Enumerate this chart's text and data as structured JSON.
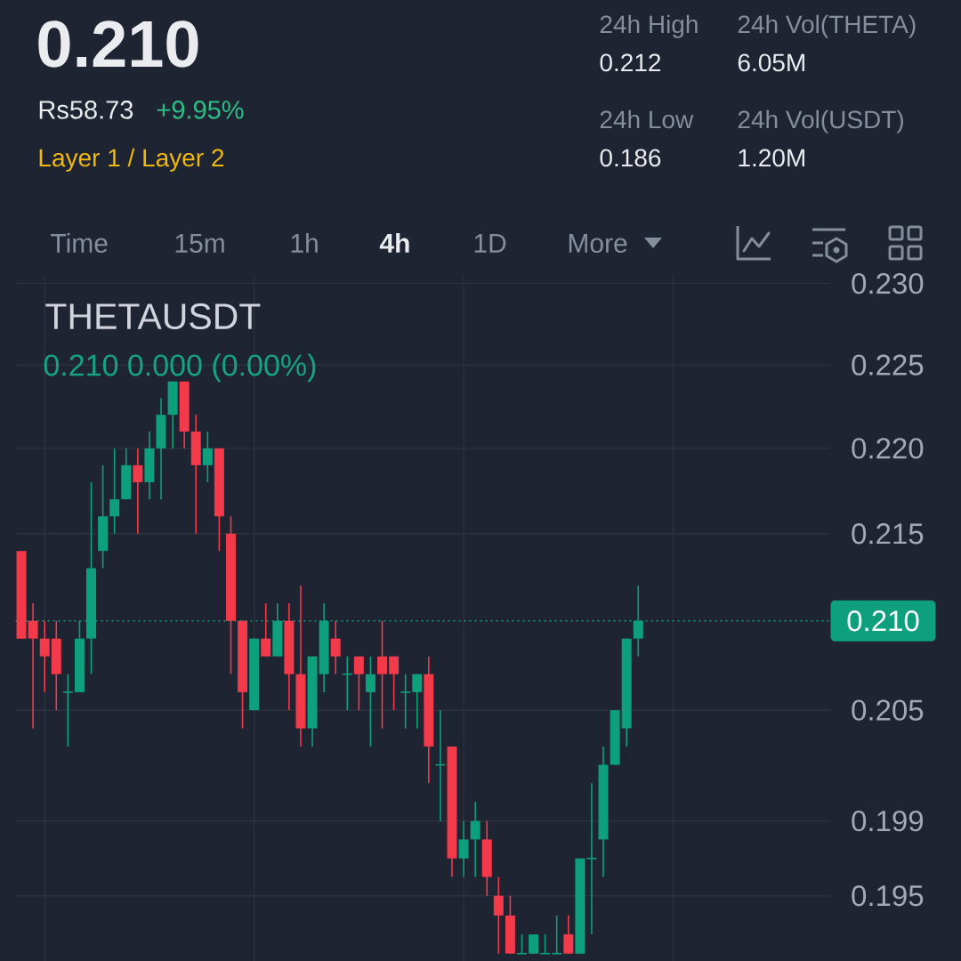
{
  "chart_data": {
    "type": "candlestick",
    "title": "THETAUSDT",
    "annotations": [
      "0.210",
      "Rs58.73",
      "+9.95%",
      "Layer 1 / Layer 2",
      "24h High",
      "0.212",
      "24h Vol(THETA)",
      "6.05M",
      "24h Low",
      "0.186",
      "24h Vol(USDT)",
      "1.20M",
      "Time",
      "15m",
      "1h",
      "4h",
      "1D",
      "More",
      "0.210 0.000 (0.00%)"
    ],
    "categories": [
      null,
      null,
      null,
      null,
      null,
      null,
      null,
      null,
      null,
      null,
      null,
      null,
      null,
      null,
      null,
      null,
      null,
      null,
      null,
      null,
      null,
      null,
      null,
      null,
      null,
      null,
      null,
      null,
      null,
      null,
      null,
      null,
      null,
      null,
      null,
      null,
      null,
      null,
      null,
      null,
      null,
      null,
      null,
      null,
      null,
      null,
      null,
      null,
      null,
      null,
      null,
      null,
      null,
      null,
      null,
      null,
      null,
      null,
      null,
      null,
      null,
      null,
      null,
      null,
      null,
      null,
      null,
      null,
      null,
      null
    ],
    "ohlc": [
      [
        0.214,
        0.214,
        0.209,
        0.209
      ],
      [
        0.21,
        0.211,
        0.204,
        0.209
      ],
      [
        0.209,
        0.21,
        0.206,
        0.208
      ],
      [
        0.209,
        0.21,
        0.205,
        0.207
      ],
      [
        0.206,
        0.207,
        0.203,
        0.206
      ],
      [
        0.206,
        0.21,
        0.206,
        0.209
      ],
      [
        0.209,
        0.218,
        0.207,
        0.213
      ],
      [
        0.214,
        0.219,
        0.213,
        0.216
      ],
      [
        0.216,
        0.22,
        0.215,
        0.217
      ],
      [
        0.217,
        0.22,
        0.217,
        0.219
      ],
      [
        0.219,
        0.22,
        0.215,
        0.218
      ],
      [
        0.218,
        0.221,
        0.217,
        0.22
      ],
      [
        0.22,
        0.223,
        0.217,
        0.222
      ],
      [
        0.222,
        0.224,
        0.22,
        0.224
      ],
      [
        0.224,
        0.224,
        0.22,
        0.221
      ],
      [
        0.221,
        0.222,
        0.215,
        0.219
      ],
      [
        0.219,
        0.221,
        0.218,
        0.22
      ],
      [
        0.22,
        0.22,
        0.214,
        0.216
      ],
      [
        0.215,
        0.216,
        0.207,
        0.21
      ],
      [
        0.21,
        0.21,
        0.204,
        0.206
      ],
      [
        0.205,
        0.209,
        0.205,
        0.209
      ],
      [
        0.209,
        0.211,
        0.208,
        0.208
      ],
      [
        0.208,
        0.211,
        0.208,
        0.21
      ],
      [
        0.21,
        0.211,
        0.205,
        0.207
      ],
      [
        0.207,
        0.212,
        0.203,
        0.204
      ],
      [
        0.204,
        0.208,
        0.203,
        0.208
      ],
      [
        0.207,
        0.211,
        0.206,
        0.21
      ],
      [
        0.209,
        0.21,
        0.207,
        0.208
      ],
      [
        0.207,
        0.208,
        0.205,
        0.207
      ],
      [
        0.208,
        0.208,
        0.205,
        0.207
      ],
      [
        0.206,
        0.208,
        0.203,
        0.207
      ],
      [
        0.208,
        0.21,
        0.204,
        0.207
      ],
      [
        0.208,
        0.208,
        0.205,
        0.207
      ],
      [
        0.206,
        0.207,
        0.204,
        0.206
      ],
      [
        0.206,
        0.207,
        0.204,
        0.207
      ],
      [
        0.207,
        0.208,
        0.201,
        0.203
      ],
      [
        0.202,
        0.205,
        0.199,
        0.202
      ],
      [
        0.203,
        0.203,
        0.196,
        0.197
      ],
      [
        0.197,
        0.199,
        0.196,
        0.198
      ],
      [
        0.198,
        0.2,
        0.196,
        0.199
      ],
      [
        0.198,
        0.199,
        0.195,
        0.196
      ],
      [
        0.195,
        0.196,
        0.192,
        0.194
      ],
      [
        0.194,
        0.195,
        0.192,
        0.192
      ],
      [
        0.192,
        0.193,
        0.192,
        0.192
      ],
      [
        0.192,
        0.193,
        0.192,
        0.193
      ],
      [
        0.192,
        0.193,
        0.192,
        0.192
      ],
      [
        0.192,
        0.194,
        0.192,
        0.192
      ],
      [
        0.193,
        0.194,
        0.192,
        0.192
      ],
      [
        0.192,
        0.197,
        0.192,
        0.197
      ],
      [
        0.197,
        0.201,
        0.193,
        0.197
      ],
      [
        0.198,
        0.203,
        0.196,
        0.202
      ],
      [
        0.202,
        0.205,
        0.202,
        0.205
      ],
      [
        0.204,
        0.209,
        0.203,
        0.209
      ],
      [
        0.209,
        0.212,
        0.208,
        0.21
      ],
      null,
      null,
      null,
      null,
      null,
      null,
      null,
      null,
      null,
      null,
      null,
      null,
      null,
      null,
      null,
      null
    ],
    "colors": [
      "#f23a4b",
      "#f23a4b",
      "#f23a4b",
      "#f23a4b",
      "#0e9f7c",
      "#0e9f7c",
      "#0e9f7c",
      "#0e9f7c",
      "#0e9f7c",
      "#0e9f7c",
      "#f23a4b",
      "#0e9f7c",
      "#0e9f7c",
      "#0e9f7c",
      "#f23a4b",
      "#f23a4b",
      "#0e9f7c",
      "#f23a4b",
      "#f23a4b",
      "#f23a4b",
      "#0e9f7c",
      "#f23a4b",
      "#0e9f7c",
      "#f23a4b",
      "#f23a4b",
      "#0e9f7c",
      "#0e9f7c",
      "#f23a4b",
      "#0e9f7c",
      "#f23a4b",
      "#0e9f7c",
      "#f23a4b",
      "#f23a4b",
      "#0e9f7c",
      "#0e9f7c",
      "#f23a4b",
      "#0e9f7c",
      "#f23a4b",
      "#0e9f7c",
      "#0e9f7c",
      "#f23a4b",
      "#f23a4b",
      "#f23a4b",
      "#0e9f7c",
      "#0e9f7c",
      "#0e9f7c",
      "#0e9f7c",
      "#f23a4b",
      "#0e9f7c",
      "#0e9f7c",
      "#0e9f7c",
      "#0e9f7c",
      "#0e9f7c",
      "#0e9f7c",
      null,
      null,
      null,
      null,
      null,
      null,
      null,
      null,
      null,
      null,
      null,
      null,
      null,
      null,
      null,
      null
    ],
    "log": "y",
    "ylim": [
      0.1916,
      0.2305
    ],
    "yticks": [
      0.195,
      0.199,
      0.205,
      0.215,
      {
        "value": 0.22,
        "label": "0.220"
      },
      0.225,
      {
        "value": 0.23,
        "label": "0.230"
      }
    ],
    "tick_labels": "y",
    "grid": true,
    "ref_lines": [
      {
        "axis": "y",
        "value": 0.21,
        "label": "0.210",
        "color": "#0e9f7c",
        "line_style": "dotted"
      }
    ]
  }
}
